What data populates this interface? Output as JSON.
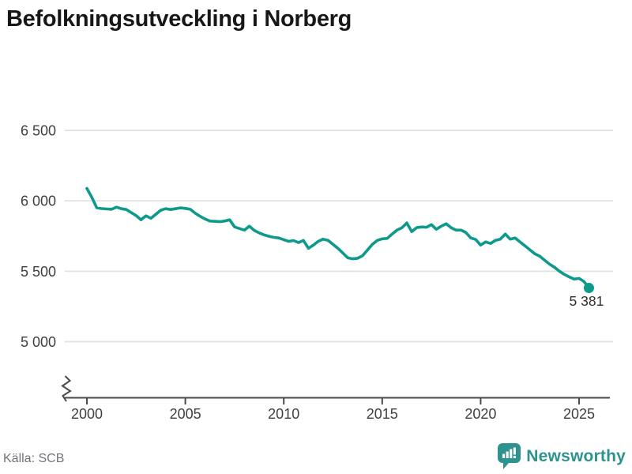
{
  "header": {
    "title": "Befolkningsutveckling i Norberg"
  },
  "footer": {
    "source": "Källa: SCB",
    "brand": "Newsworthy"
  },
  "annotation": {
    "last_value": "5 381"
  },
  "colors": {
    "line": "#0d9a8c",
    "grid": "#e4e4e4",
    "axis": "#4a4a4a",
    "tick_text": "#3f3f3f",
    "title_text": "#171717",
    "source_text": "#73737b",
    "brand": "#2e938e",
    "annotation_text": "#2e2e2e"
  },
  "chart_data": {
    "type": "line",
    "title": "Befolkningsutveckling i Norberg",
    "grid": "horizontal",
    "legend": "none",
    "axis_break": true,
    "xlim": [
      2000,
      2025.5
    ],
    "ylim_visible": [
      5000,
      6500
    ],
    "x_tick_years": [
      2000,
      2005,
      2010,
      2015,
      2020,
      2025
    ],
    "x_tick_labels": [
      "2000",
      "2005",
      "2010",
      "2015",
      "2020",
      "2025"
    ],
    "y_ticks": [
      6500,
      6000,
      5500,
      5000
    ],
    "y_tick_labels": [
      "6 500",
      "6 000",
      "5 500",
      "5 000"
    ],
    "end_point_label": "5 381",
    "end_value": 5381,
    "x": [
      2000.0,
      2000.25,
      2000.5,
      2000.75,
      2001.0,
      2001.25,
      2001.5,
      2001.75,
      2002.0,
      2002.25,
      2002.5,
      2002.75,
      2003.0,
      2003.25,
      2003.5,
      2003.75,
      2004.0,
      2004.25,
      2004.5,
      2004.75,
      2005.0,
      2005.25,
      2005.5,
      2005.75,
      2006.0,
      2006.25,
      2006.5,
      2006.75,
      2007.0,
      2007.25,
      2007.5,
      2007.75,
      2008.0,
      2008.25,
      2008.5,
      2008.75,
      2009.0,
      2009.25,
      2009.5,
      2009.75,
      2010.0,
      2010.25,
      2010.5,
      2010.75,
      2011.0,
      2011.25,
      2011.5,
      2011.75,
      2012.0,
      2012.25,
      2012.5,
      2012.75,
      2013.0,
      2013.25,
      2013.5,
      2013.75,
      2014.0,
      2014.25,
      2014.5,
      2014.75,
      2015.0,
      2015.25,
      2015.5,
      2015.75,
      2016.0,
      2016.25,
      2016.5,
      2016.75,
      2017.0,
      2017.25,
      2017.5,
      2017.75,
      2018.0,
      2018.25,
      2018.5,
      2018.75,
      2019.0,
      2019.25,
      2019.5,
      2019.75,
      2020.0,
      2020.25,
      2020.5,
      2020.75,
      2021.0,
      2021.25,
      2021.5,
      2021.75,
      2022.0,
      2022.25,
      2022.5,
      2022.75,
      2023.0,
      2023.25,
      2023.5,
      2023.75,
      2024.0,
      2024.25,
      2024.5,
      2024.75,
      2025.0,
      2025.25,
      2025.5
    ],
    "values": [
      6088,
      6025,
      5950,
      5945,
      5942,
      5940,
      5955,
      5944,
      5938,
      5916,
      5895,
      5865,
      5893,
      5876,
      5904,
      5933,
      5944,
      5938,
      5944,
      5950,
      5946,
      5940,
      5912,
      5890,
      5871,
      5856,
      5854,
      5852,
      5856,
      5865,
      5815,
      5803,
      5792,
      5820,
      5790,
      5772,
      5758,
      5748,
      5740,
      5736,
      5724,
      5712,
      5718,
      5703,
      5719,
      5663,
      5685,
      5712,
      5728,
      5719,
      5691,
      5663,
      5629,
      5595,
      5588,
      5592,
      5610,
      5650,
      5691,
      5719,
      5730,
      5733,
      5764,
      5792,
      5808,
      5843,
      5781,
      5809,
      5814,
      5812,
      5831,
      5798,
      5820,
      5837,
      5809,
      5792,
      5792,
      5775,
      5736,
      5725,
      5685,
      5708,
      5697,
      5719,
      5728,
      5764,
      5728,
      5736,
      5708,
      5680,
      5652,
      5624,
      5607,
      5578,
      5550,
      5528,
      5500,
      5478,
      5460,
      5444,
      5449,
      5427,
      5381
    ]
  }
}
